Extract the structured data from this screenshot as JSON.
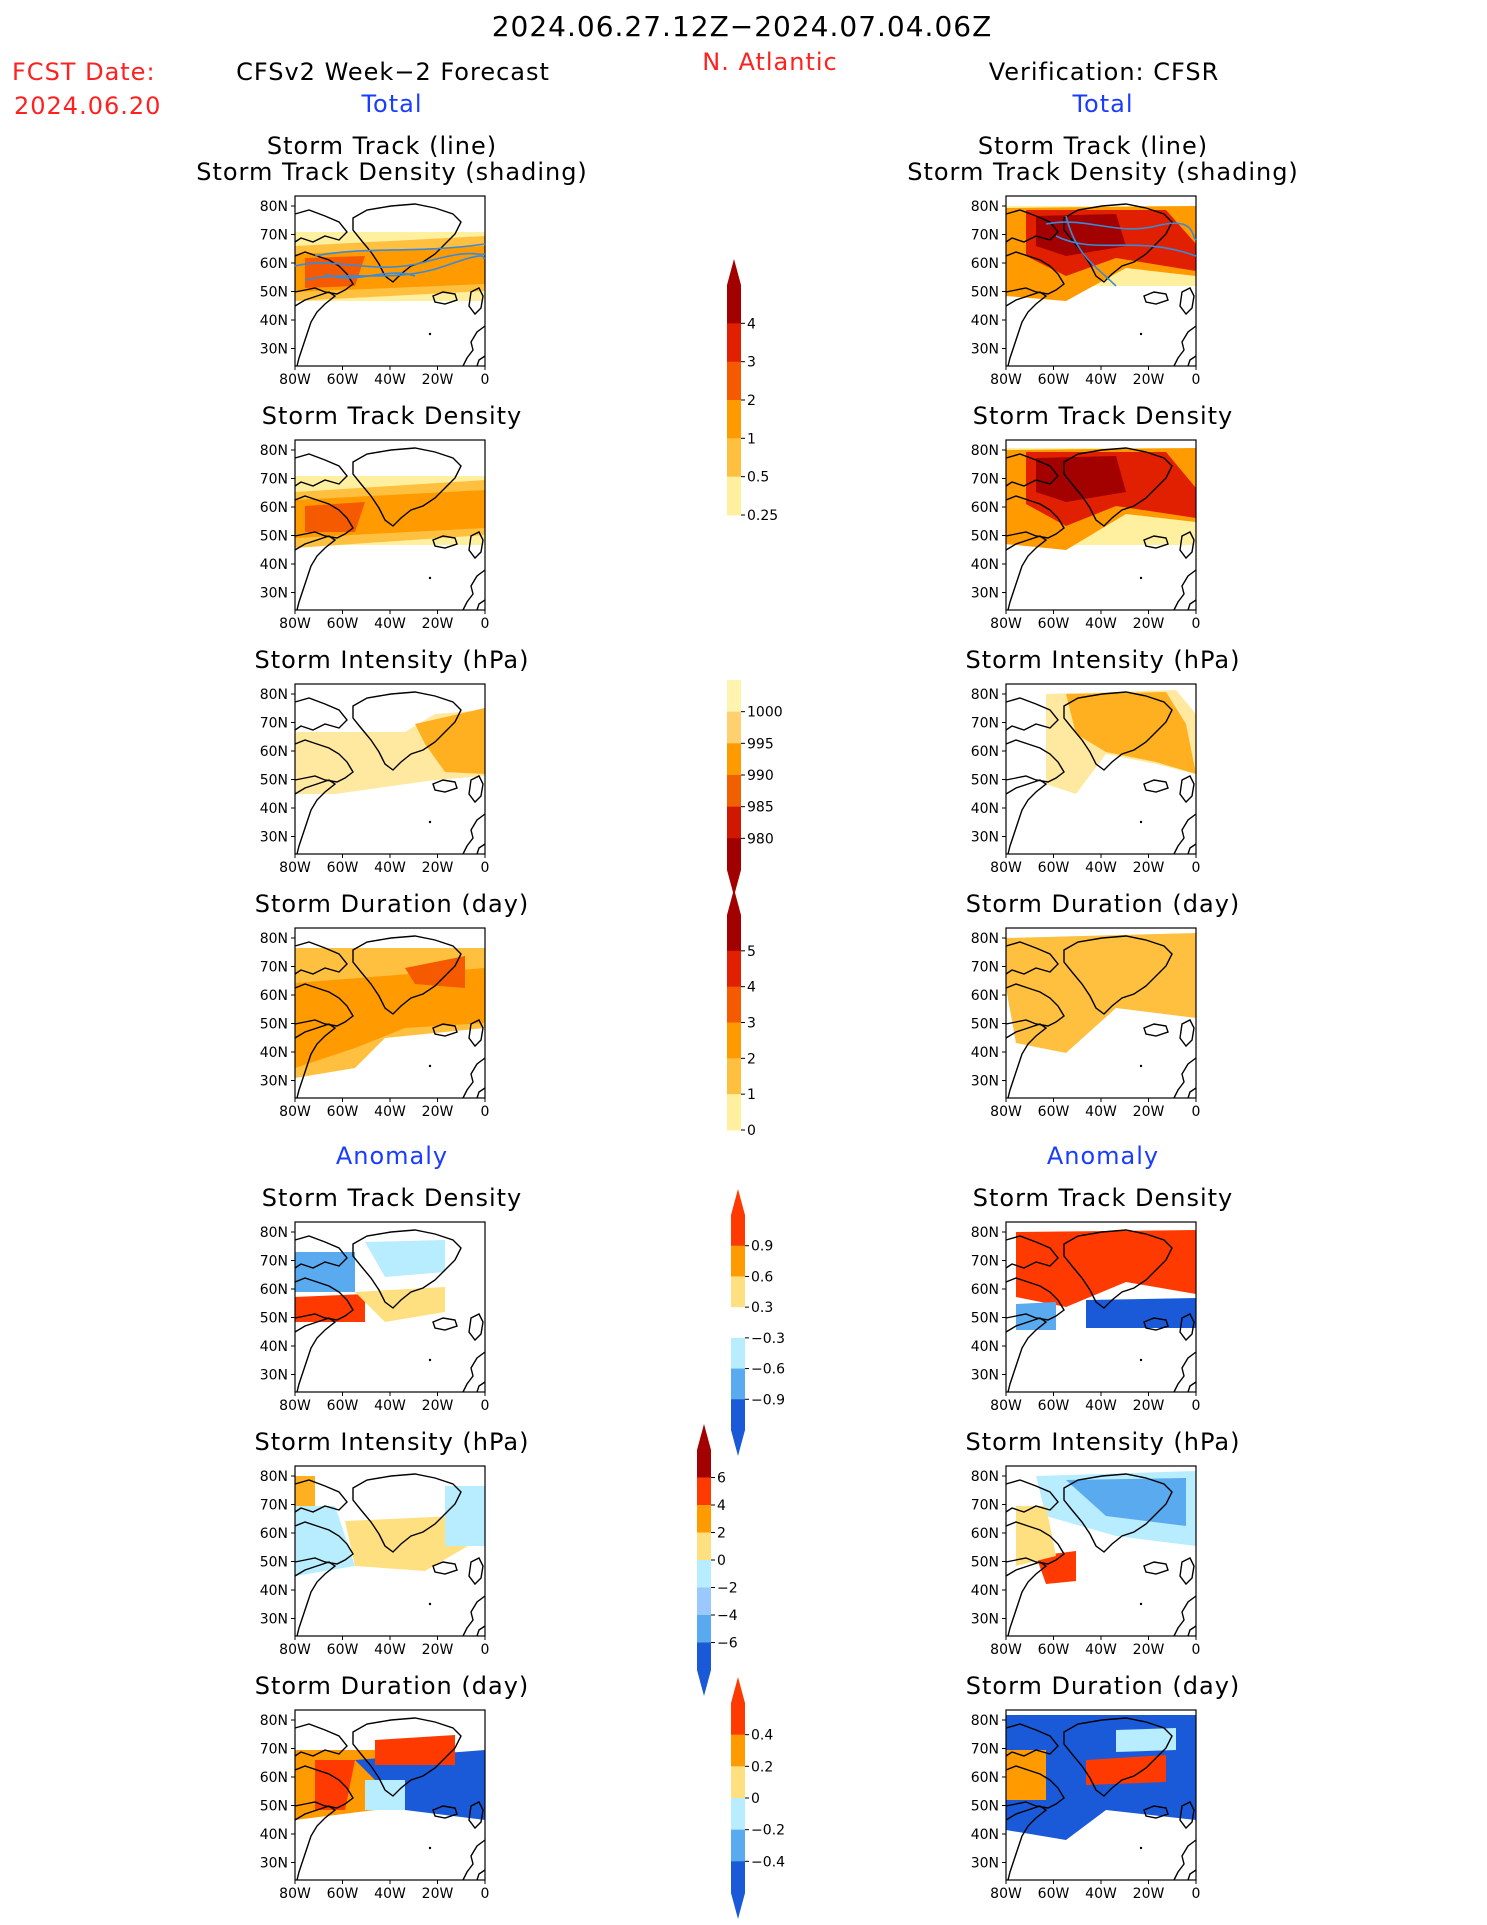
{
  "header": {
    "period": "2024.06.27.12Z−2024.07.04.06Z",
    "region": "N. Atlantic",
    "fcst_label": "FCST Date:",
    "fcst_date": "2024.06.20",
    "left_title": "CFSv2 Week−2 Forecast",
    "right_title": "Verification: CFSR",
    "total_label": "Total",
    "anomaly_label": "Anomaly"
  },
  "axes": {
    "lat_labels": [
      "80N",
      "70N",
      "60N",
      "50N",
      "40N",
      "30N"
    ],
    "lon_labels": [
      "80W",
      "60W",
      "40W",
      "20W",
      "0"
    ]
  },
  "panels": {
    "row1_title_a": "Storm Track (line)",
    "row1_title_b": "Storm Track Density (shading)",
    "row2_title": "Storm Track Density",
    "row3_title": "Storm Intensity (hPa)",
    "row4_title": "Storm Duration (day)",
    "row5_title": "Storm Track Density",
    "row6_title": "Storm Intensity (hPa)",
    "row7_title": "Storm Duration (day)"
  },
  "colorbars": {
    "density": {
      "labels": [
        "4",
        "3",
        "2",
        "1",
        "0.5",
        "0.25"
      ],
      "colors": [
        "#a30000",
        "#e02000",
        "#f55a00",
        "#ff9a00",
        "#ffc040",
        "#fff0a0"
      ]
    },
    "intensity": {
      "labels": [
        "1000",
        "995",
        "990",
        "985",
        "980"
      ],
      "colors": [
        "#fff3b0",
        "#ffd070",
        "#ff9a00",
        "#f06000",
        "#d01800",
        "#a00000"
      ]
    },
    "duration": {
      "labels": [
        "5",
        "4",
        "3",
        "2",
        "1",
        "0"
      ],
      "colors": [
        "#a30000",
        "#e02000",
        "#f55a00",
        "#ff9a00",
        "#ffc040",
        "#fff0a0"
      ]
    },
    "density_anom": {
      "labels": [
        "0.9",
        "0.6",
        "0.3",
        "−0.3",
        "−0.6",
        "−0.9"
      ],
      "colors": [
        "#ff3a00",
        "#ff9a00",
        "#ffe080",
        "#ffffff",
        "#b8ecff",
        "#5aaaf0",
        "#1a5ad8"
      ]
    },
    "intensity_anom": {
      "labels": [
        "6",
        "4",
        "2",
        "0",
        "−2",
        "−4",
        "−6"
      ],
      "colors": [
        "#a30000",
        "#ff3a00",
        "#ff9a00",
        "#ffe080",
        "#b8ecff",
        "#9ac8ff",
        "#5aaaf0",
        "#1a5ad8"
      ]
    },
    "duration_anom": {
      "labels": [
        "0.4",
        "0.2",
        "0",
        "−0.2",
        "−0.4"
      ],
      "colors": [
        "#ff3a00",
        "#ff9a00",
        "#ffe080",
        "#b8ecff",
        "#5aaaf0",
        "#1a5ad8"
      ]
    }
  },
  "palette": {
    "track_line": "#3a8ad8",
    "red_text": "#ff2020",
    "blue_text": "#1a3cff"
  }
}
